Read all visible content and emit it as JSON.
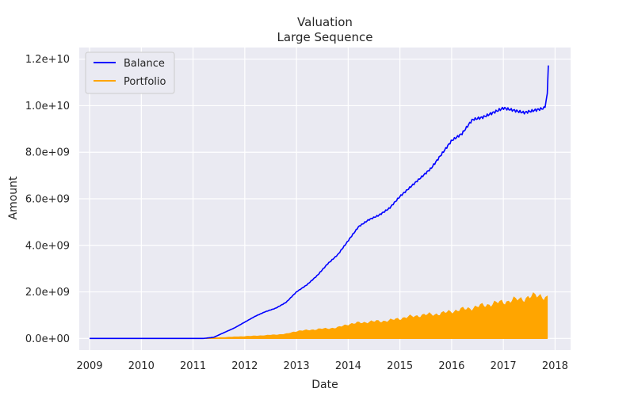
{
  "chart_data": {
    "type": "line",
    "title": "Valuation",
    "subtitle": "Large Sequence",
    "xlabel": "Date",
    "ylabel": "Amount",
    "xlim": [
      2008.8,
      2018.3
    ],
    "ylim": [
      -500000000,
      12500000000
    ],
    "x_ticks": [
      2009,
      2010,
      2011,
      2012,
      2013,
      2014,
      2015,
      2016,
      2017,
      2018
    ],
    "x_tick_labels": [
      "2009",
      "2010",
      "2011",
      "2012",
      "2013",
      "2014",
      "2015",
      "2016",
      "2017",
      "2018"
    ],
    "y_ticks": [
      0,
      2000000000,
      4000000000,
      6000000000,
      8000000000,
      10000000000,
      12000000000
    ],
    "y_tick_labels": [
      "0.0e+00",
      "2.0e+09",
      "4.0e+09",
      "6.0e+09",
      "8.0e+09",
      "1.0e+10",
      "1.2e+10"
    ],
    "grid": true,
    "legend_position": "top-left",
    "series": [
      {
        "name": "Balance",
        "color": "#0000ff",
        "style": "line",
        "x": [
          2009.0,
          2010.0,
          2011.0,
          2011.2,
          2011.4,
          2011.6,
          2011.8,
          2012.0,
          2012.2,
          2012.4,
          2012.6,
          2012.8,
          2013.0,
          2013.2,
          2013.4,
          2013.6,
          2013.8,
          2014.0,
          2014.2,
          2014.4,
          2014.6,
          2014.8,
          2015.0,
          2015.2,
          2015.4,
          2015.6,
          2015.8,
          2016.0,
          2016.2,
          2016.4,
          2016.6,
          2016.8,
          2017.0,
          2017.2,
          2017.4,
          2017.6,
          2017.8,
          2017.85,
          2017.87
        ],
        "y": [
          0,
          0,
          0,
          0,
          50000000,
          250000000,
          450000000,
          700000000,
          950000000,
          1150000000,
          1300000000,
          1550000000,
          2000000000,
          2300000000,
          2700000000,
          3200000000,
          3600000000,
          4200000000,
          4800000000,
          5100000000,
          5300000000,
          5600000000,
          6100000000,
          6500000000,
          6900000000,
          7300000000,
          7900000000,
          8500000000,
          8800000000,
          9400000000,
          9500000000,
          9700000000,
          9900000000,
          9800000000,
          9700000000,
          9800000000,
          9900000000,
          10500000000,
          11800000000
        ]
      },
      {
        "name": "Portfolio",
        "color": "#ffa500",
        "style": "filled-oscillation",
        "x": [
          2009.0,
          2010.0,
          2011.0,
          2011.3,
          2011.6,
          2012.0,
          2012.4,
          2012.8,
          2013.0,
          2013.4,
          2013.8,
          2014.0,
          2014.4,
          2014.8,
          2015.0,
          2015.4,
          2015.8,
          2016.0,
          2016.4,
          2016.8,
          2017.0,
          2017.4,
          2017.7,
          2017.85
        ],
        "y": [
          0,
          0,
          0,
          10000000,
          40000000,
          80000000,
          120000000,
          180000000,
          300000000,
          380000000,
          450000000,
          600000000,
          700000000,
          750000000,
          850000000,
          980000000,
          1050000000,
          1150000000,
          1300000000,
          1480000000,
          1550000000,
          1700000000,
          1850000000,
          1700000000
        ]
      }
    ]
  }
}
